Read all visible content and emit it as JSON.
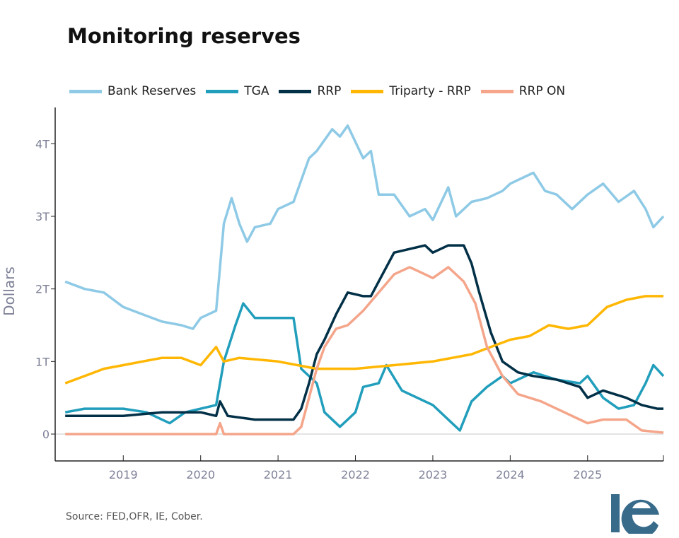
{
  "chart_data": {
    "type": "line",
    "title": "Monitoring reserves",
    "ylabel": "Dollars",
    "xlabel": "",
    "xlim": [
      2018.12,
      2025.98
    ],
    "ylim": [
      -0.37,
      4.5
    ],
    "x_ticks": [
      "2019",
      "2020",
      "2021",
      "2022",
      "2023",
      "2024",
      "2025"
    ],
    "y_ticks": [
      {
        "v": 0,
        "label": "0"
      },
      {
        "v": 1,
        "label": "1T"
      },
      {
        "v": 2,
        "label": "2T"
      },
      {
        "v": 3,
        "label": "3T"
      },
      {
        "v": 4,
        "label": "4T"
      }
    ],
    "grid": "zero line only",
    "legend_position": "top",
    "series": [
      {
        "name": "Bank Reserves",
        "color": "#8ecae6",
        "points": [
          [
            2018.25,
            2.1
          ],
          [
            2018.5,
            2.0
          ],
          [
            2018.75,
            1.95
          ],
          [
            2019.0,
            1.75
          ],
          [
            2019.25,
            1.65
          ],
          [
            2019.5,
            1.55
          ],
          [
            2019.75,
            1.5
          ],
          [
            2019.9,
            1.45
          ],
          [
            2020.0,
            1.6
          ],
          [
            2020.2,
            1.7
          ],
          [
            2020.3,
            2.9
          ],
          [
            2020.4,
            3.25
          ],
          [
            2020.5,
            2.9
          ],
          [
            2020.6,
            2.65
          ],
          [
            2020.7,
            2.85
          ],
          [
            2020.9,
            2.9
          ],
          [
            2021.0,
            3.1
          ],
          [
            2021.2,
            3.2
          ],
          [
            2021.4,
            3.8
          ],
          [
            2021.5,
            3.9
          ],
          [
            2021.7,
            4.2
          ],
          [
            2021.8,
            4.1
          ],
          [
            2021.9,
            4.25
          ],
          [
            2022.1,
            3.8
          ],
          [
            2022.2,
            3.9
          ],
          [
            2022.3,
            3.3
          ],
          [
            2022.5,
            3.3
          ],
          [
            2022.7,
            3.0
          ],
          [
            2022.9,
            3.1
          ],
          [
            2023.0,
            2.95
          ],
          [
            2023.2,
            3.4
          ],
          [
            2023.3,
            3.0
          ],
          [
            2023.5,
            3.2
          ],
          [
            2023.7,
            3.25
          ],
          [
            2023.9,
            3.35
          ],
          [
            2024.0,
            3.45
          ],
          [
            2024.2,
            3.55
          ],
          [
            2024.3,
            3.6
          ],
          [
            2024.45,
            3.35
          ],
          [
            2024.6,
            3.3
          ],
          [
            2024.8,
            3.1
          ],
          [
            2025.0,
            3.3
          ],
          [
            2025.2,
            3.45
          ],
          [
            2025.4,
            3.2
          ],
          [
            2025.6,
            3.35
          ],
          [
            2025.75,
            3.1
          ],
          [
            2025.85,
            2.85
          ],
          [
            2025.98,
            3.0
          ]
        ]
      },
      {
        "name": "TGA",
        "color": "#219ebc",
        "points": [
          [
            2018.25,
            0.3
          ],
          [
            2018.5,
            0.35
          ],
          [
            2019.0,
            0.35
          ],
          [
            2019.3,
            0.3
          ],
          [
            2019.6,
            0.15
          ],
          [
            2019.8,
            0.3
          ],
          [
            2020.0,
            0.35
          ],
          [
            2020.2,
            0.4
          ],
          [
            2020.3,
            1.0
          ],
          [
            2020.45,
            1.5
          ],
          [
            2020.55,
            1.8
          ],
          [
            2020.7,
            1.6
          ],
          [
            2020.9,
            1.6
          ],
          [
            2021.0,
            1.6
          ],
          [
            2021.2,
            1.6
          ],
          [
            2021.3,
            0.9
          ],
          [
            2021.5,
            0.7
          ],
          [
            2021.6,
            0.3
          ],
          [
            2021.8,
            0.1
          ],
          [
            2021.9,
            0.2
          ],
          [
            2022.0,
            0.3
          ],
          [
            2022.1,
            0.65
          ],
          [
            2022.3,
            0.7
          ],
          [
            2022.4,
            0.95
          ],
          [
            2022.6,
            0.6
          ],
          [
            2022.8,
            0.5
          ],
          [
            2023.0,
            0.4
          ],
          [
            2023.2,
            0.2
          ],
          [
            2023.35,
            0.05
          ],
          [
            2023.5,
            0.45
          ],
          [
            2023.7,
            0.65
          ],
          [
            2023.9,
            0.8
          ],
          [
            2024.0,
            0.7
          ],
          [
            2024.3,
            0.85
          ],
          [
            2024.6,
            0.75
          ],
          [
            2024.9,
            0.7
          ],
          [
            2025.0,
            0.8
          ],
          [
            2025.2,
            0.5
          ],
          [
            2025.4,
            0.35
          ],
          [
            2025.6,
            0.4
          ],
          [
            2025.75,
            0.7
          ],
          [
            2025.85,
            0.95
          ],
          [
            2025.98,
            0.8
          ]
        ]
      },
      {
        "name": "RRP",
        "color": "#023047",
        "points": [
          [
            2018.25,
            0.25
          ],
          [
            2019.0,
            0.25
          ],
          [
            2019.5,
            0.3
          ],
          [
            2020.0,
            0.3
          ],
          [
            2020.2,
            0.25
          ],
          [
            2020.25,
            0.45
          ],
          [
            2020.35,
            0.25
          ],
          [
            2020.7,
            0.2
          ],
          [
            2021.0,
            0.2
          ],
          [
            2021.2,
            0.2
          ],
          [
            2021.3,
            0.35
          ],
          [
            2021.4,
            0.7
          ],
          [
            2021.5,
            1.1
          ],
          [
            2021.6,
            1.3
          ],
          [
            2021.75,
            1.65
          ],
          [
            2021.9,
            1.95
          ],
          [
            2022.1,
            1.9
          ],
          [
            2022.2,
            1.9
          ],
          [
            2022.35,
            2.2
          ],
          [
            2022.5,
            2.5
          ],
          [
            2022.7,
            2.55
          ],
          [
            2022.9,
            2.6
          ],
          [
            2023.0,
            2.5
          ],
          [
            2023.2,
            2.6
          ],
          [
            2023.4,
            2.6
          ],
          [
            2023.5,
            2.35
          ],
          [
            2023.6,
            1.95
          ],
          [
            2023.75,
            1.4
          ],
          [
            2023.9,
            1.0
          ],
          [
            2024.1,
            0.85
          ],
          [
            2024.3,
            0.8
          ],
          [
            2024.6,
            0.75
          ],
          [
            2024.9,
            0.65
          ],
          [
            2025.0,
            0.5
          ],
          [
            2025.2,
            0.6
          ],
          [
            2025.5,
            0.5
          ],
          [
            2025.7,
            0.4
          ],
          [
            2025.9,
            0.35
          ],
          [
            2025.98,
            0.35
          ]
        ]
      },
      {
        "name": "Triparty - RRP",
        "color": "#ffb703",
        "points": [
          [
            2018.25,
            0.7
          ],
          [
            2018.5,
            0.8
          ],
          [
            2018.75,
            0.9
          ],
          [
            2019.0,
            0.95
          ],
          [
            2019.25,
            1.0
          ],
          [
            2019.5,
            1.05
          ],
          [
            2019.75,
            1.05
          ],
          [
            2020.0,
            0.95
          ],
          [
            2020.2,
            1.2
          ],
          [
            2020.3,
            1.0
          ],
          [
            2020.5,
            1.05
          ],
          [
            2021.0,
            1.0
          ],
          [
            2021.5,
            0.9
          ],
          [
            2022.0,
            0.9
          ],
          [
            2022.5,
            0.95
          ],
          [
            2023.0,
            1.0
          ],
          [
            2023.5,
            1.1
          ],
          [
            2023.75,
            1.2
          ],
          [
            2024.0,
            1.3
          ],
          [
            2024.25,
            1.35
          ],
          [
            2024.5,
            1.5
          ],
          [
            2024.75,
            1.45
          ],
          [
            2025.0,
            1.5
          ],
          [
            2025.25,
            1.75
          ],
          [
            2025.5,
            1.85
          ],
          [
            2025.75,
            1.9
          ],
          [
            2025.98,
            1.9
          ]
        ]
      },
      {
        "name": "RRP ON",
        "color": "#f4a58a",
        "points": [
          [
            2018.25,
            0.0
          ],
          [
            2020.2,
            0.0
          ],
          [
            2020.25,
            0.15
          ],
          [
            2020.3,
            0.0
          ],
          [
            2021.2,
            0.0
          ],
          [
            2021.3,
            0.1
          ],
          [
            2021.4,
            0.5
          ],
          [
            2021.5,
            0.9
          ],
          [
            2021.6,
            1.2
          ],
          [
            2021.75,
            1.45
          ],
          [
            2021.9,
            1.5
          ],
          [
            2022.1,
            1.7
          ],
          [
            2022.3,
            1.95
          ],
          [
            2022.5,
            2.2
          ],
          [
            2022.7,
            2.3
          ],
          [
            2022.9,
            2.2
          ],
          [
            2023.0,
            2.15
          ],
          [
            2023.2,
            2.3
          ],
          [
            2023.4,
            2.1
          ],
          [
            2023.55,
            1.8
          ],
          [
            2023.7,
            1.2
          ],
          [
            2023.9,
            0.8
          ],
          [
            2024.1,
            0.55
          ],
          [
            2024.4,
            0.45
          ],
          [
            2024.7,
            0.3
          ],
          [
            2024.9,
            0.2
          ],
          [
            2025.0,
            0.15
          ],
          [
            2025.2,
            0.2
          ],
          [
            2025.5,
            0.2
          ],
          [
            2025.7,
            0.05
          ],
          [
            2025.98,
            0.02
          ]
        ]
      }
    ]
  },
  "source": "Source: FED,OFR, IE, Cober.",
  "logo": "IE"
}
